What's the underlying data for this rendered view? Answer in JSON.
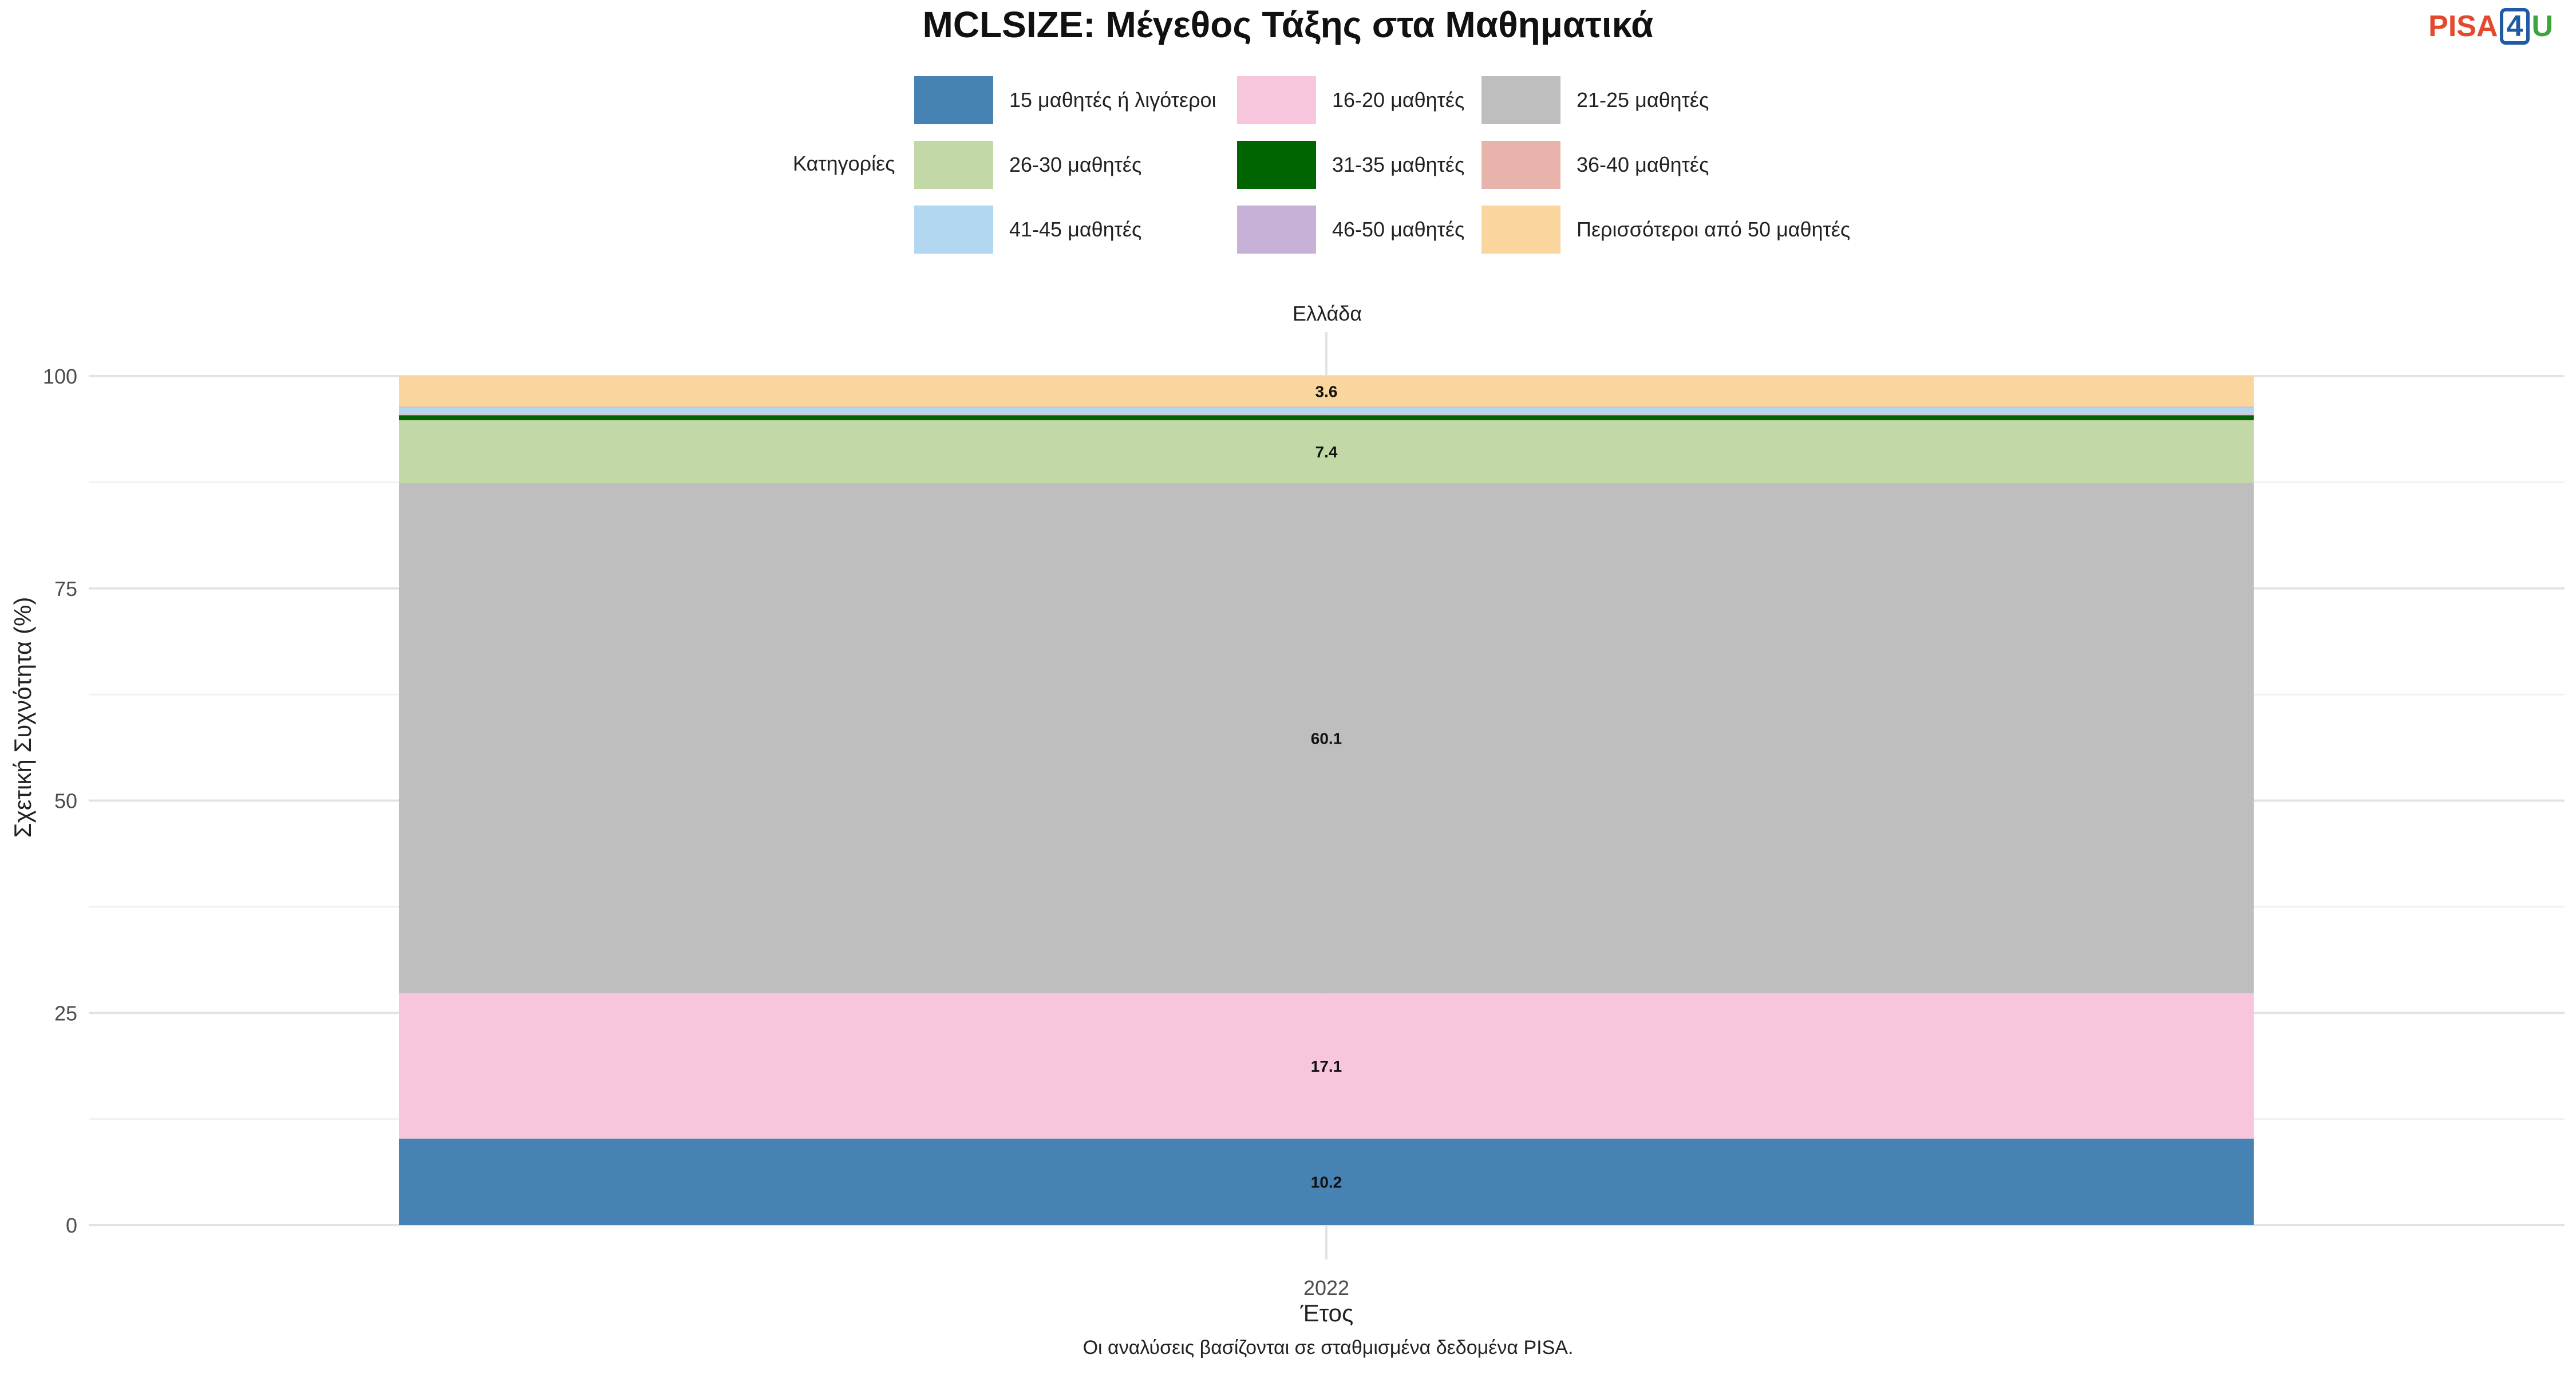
{
  "title": "MCLSIZE: Μέγεθος Τάξης στα Μαθηματικά",
  "logo": {
    "part1": "PISA",
    "part2": "4",
    "part3": "U"
  },
  "legend": {
    "title": "Κατηγορίες",
    "items": [
      {
        "label": "15 μαθητές ή λιγότεροι",
        "color": "#4682b4"
      },
      {
        "label": "16-20 μαθητές",
        "color": "#f7c6dc"
      },
      {
        "label": "21-25 μαθητές",
        "color": "#bebebe"
      },
      {
        "label": "26-30 μαθητές",
        "color": "#c3d8a7"
      },
      {
        "label": "31-35 μαθητές",
        "color": "#006400"
      },
      {
        "label": "36-40 μαθητές",
        "color": "#e8b3aa"
      },
      {
        "label": "41-45 μαθητές",
        "color": "#b3d7f0"
      },
      {
        "label": "46-50 μαθητές",
        "color": "#c8b1d6"
      },
      {
        "label": "Περισσότεροι από 50 μαθητές",
        "color": "#fbd59e"
      }
    ]
  },
  "facet_label": "Ελλάδα",
  "y_axis_label": "Σχετική Συχνότητα (%)",
  "x_axis_label": "Έτος",
  "caption": "Οι αναλύσεις βασίζονται σε σταθμισμένα δεδομένα PISA.",
  "chart_data": {
    "type": "bar",
    "stacked": true,
    "categories": [
      "2022"
    ],
    "title": "MCLSIZE: Μέγεθος Τάξης στα Μαθηματικά",
    "xlabel": "Έτος",
    "ylabel": "Σχετική Συχνότητα (%)",
    "ylim": [
      0,
      100
    ],
    "yticks": [
      0,
      25,
      50,
      75,
      100
    ],
    "grid": true,
    "legend_position": "top",
    "series": [
      {
        "name": "15 μαθητές ή λιγότεροι",
        "values": [
          10.2
        ],
        "label": "10.2"
      },
      {
        "name": "16-20 μαθητές",
        "values": [
          17.1
        ],
        "label": "17.1"
      },
      {
        "name": "21-25 μαθητές",
        "values": [
          60.1
        ],
        "label": "60.1"
      },
      {
        "name": "26-30 μαθητές",
        "values": [
          7.4
        ],
        "label": "7.4"
      },
      {
        "name": "31-35 μαθητές",
        "values": [
          0.6
        ],
        "label": ""
      },
      {
        "name": "36-40 μαθητές",
        "values": [
          0.1
        ],
        "label": ""
      },
      {
        "name": "41-45 μαθητές",
        "values": [
          0.8
        ],
        "label": ""
      },
      {
        "name": "46-50 μαθητές",
        "values": [
          0.1
        ],
        "label": ""
      },
      {
        "name": "Περισσότεροι από 50 μαθητές",
        "values": [
          3.6
        ],
        "label": "3.6"
      }
    ]
  }
}
